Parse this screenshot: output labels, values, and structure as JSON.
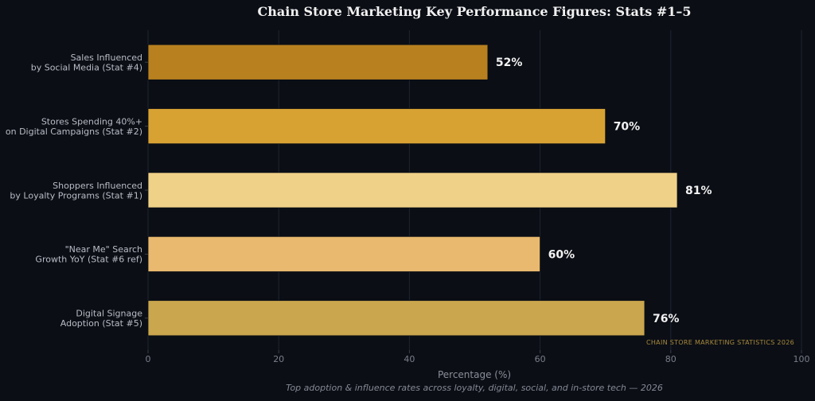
{
  "chart_data": {
    "type": "bar",
    "orientation": "horizontal",
    "title": "Chain Store Marketing Key Performance Figures: Stats #1–5",
    "xlabel": "Percentage (%)",
    "ylabel": "",
    "xlim": [
      0,
      100
    ],
    "xticks": [
      0,
      20,
      40,
      60,
      80,
      100
    ],
    "grid": true,
    "categories": [
      [
        "Sales Influenced",
        "by Social Media (Stat #4)"
      ],
      [
        "Stores Spending 40%+",
        "on Digital Campaigns (Stat #2)"
      ],
      [
        "Shoppers Influenced",
        "by Loyalty Programs (Stat #1)"
      ],
      [
        "\"Near Me\" Search",
        "Growth YoY (Stat #6 ref)"
      ],
      [
        "Digital Signage",
        "Adoption (Stat #5)"
      ]
    ],
    "values": [
      52,
      70,
      81,
      60,
      76
    ],
    "value_labels": [
      "52%",
      "70%",
      "81%",
      "60%",
      "76%"
    ],
    "colors": [
      "#b8801f",
      "#d8a233",
      "#f0d188",
      "#e8b96e",
      "#caa64e"
    ],
    "subtitle": "Top adoption & influence rates across loyalty, digital, social, and in-store tech — 2026",
    "watermark": "CHAIN STORE MARKETING STATISTICS 2026"
  }
}
